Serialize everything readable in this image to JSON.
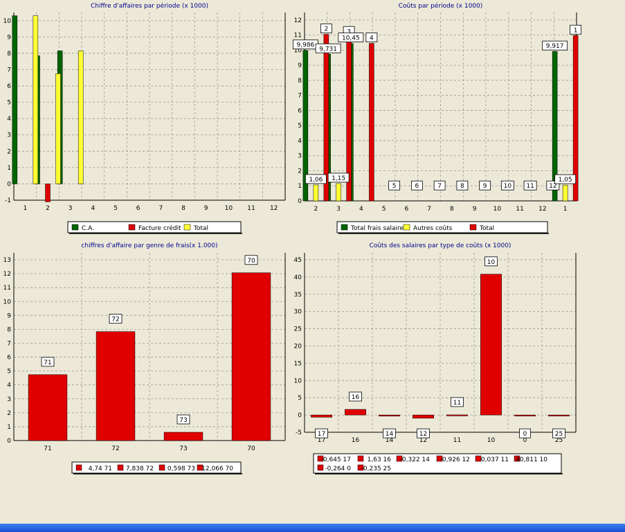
{
  "chart_data": [
    {
      "type": "bar",
      "title": "Chiffre d'affaires par période (x 1000)",
      "categories": [
        "1",
        "2",
        "3",
        "4",
        "5",
        "6",
        "7",
        "8",
        "9",
        "10",
        "11",
        "12"
      ],
      "ylim": [
        -1,
        10.5
      ],
      "yticks": [
        -1,
        0,
        1,
        2,
        3,
        4,
        5,
        6,
        7,
        8,
        9,
        10
      ],
      "grid": true,
      "legend_position": "bottom",
      "series": [
        {
          "name": "C.A.",
          "color": "#006400",
          "values": [
            10.3,
            7.85,
            8.15,
            0,
            0,
            0,
            0,
            0,
            0,
            0,
            0,
            0
          ]
        },
        {
          "name": "Facture crédit",
          "color": "#e00000",
          "values": [
            0,
            -1.1,
            0,
            0,
            0,
            0,
            0,
            0,
            0,
            0,
            0,
            0
          ]
        },
        {
          "name": "Total",
          "color": "#ffff33",
          "values": [
            10.3,
            6.75,
            8.15,
            0,
            0,
            0,
            0,
            0,
            0,
            0,
            0,
            0
          ]
        }
      ]
    },
    {
      "type": "bar",
      "title": "Coûts par période (x 1000)",
      "categories": [
        "2",
        "3",
        "4",
        "5",
        "6",
        "7",
        "8",
        "9",
        "10",
        "11",
        "12",
        "1"
      ],
      "ylim": [
        0,
        12.5
      ],
      "yticks": [
        0,
        1,
        2,
        3,
        4,
        5,
        6,
        7,
        8,
        9,
        10,
        11,
        12
      ],
      "grid": true,
      "legend_position": "bottom",
      "series": [
        {
          "name": "Total frais salaire",
          "color": "#006400",
          "values": [
            9.986,
            9.731,
            10.45,
            0,
            0,
            0,
            0,
            0,
            0,
            0,
            0,
            9.917
          ]
        },
        {
          "name": "Autres coûts",
          "color": "#ffff33",
          "values": [
            1.06,
            1.15,
            0,
            0,
            0,
            0,
            0,
            0,
            0,
            0,
            0,
            1.05
          ]
        },
        {
          "name": "Total",
          "color": "#e00000",
          "values": [
            11.05,
            10.88,
            10.45,
            0,
            0,
            0,
            0,
            0,
            0,
            0,
            0,
            10.97
          ]
        }
      ],
      "bar_labels": [
        {
          "cat": 0,
          "series": 0,
          "text": "9,986"
        },
        {
          "cat": 0,
          "series": 1,
          "text": "1,06"
        },
        {
          "cat": 0,
          "series": 2,
          "text": "2"
        },
        {
          "cat": 1,
          "series": 0,
          "text": "9,731"
        },
        {
          "cat": 1,
          "series": 1,
          "text": "1,15"
        },
        {
          "cat": 1,
          "series": 2,
          "text": "3"
        },
        {
          "cat": 2,
          "series": 0,
          "text": "10,45"
        },
        {
          "cat": 2,
          "series": 2,
          "text": "4"
        },
        {
          "cat": 3,
          "series": 2,
          "text": "5"
        },
        {
          "cat": 4,
          "series": 2,
          "text": "6"
        },
        {
          "cat": 5,
          "series": 2,
          "text": "7"
        },
        {
          "cat": 6,
          "series": 2,
          "text": "8"
        },
        {
          "cat": 7,
          "series": 2,
          "text": "9"
        },
        {
          "cat": 8,
          "series": 2,
          "text": "10"
        },
        {
          "cat": 9,
          "series": 2,
          "text": "11"
        },
        {
          "cat": 10,
          "series": 2,
          "text": "12"
        },
        {
          "cat": 11,
          "series": 0,
          "text": "9,917"
        },
        {
          "cat": 11,
          "series": 1,
          "text": "1,05"
        },
        {
          "cat": 11,
          "series": 2,
          "text": "1"
        }
      ]
    },
    {
      "type": "bar",
      "title": "chiffres d'affaire par genre de frais(x 1.000)",
      "categories": [
        "71",
        "72",
        "73",
        "70"
      ],
      "values": [
        4.74,
        7.838,
        0.598,
        12.066
      ],
      "color": "#e00000",
      "ylim": [
        0,
        13.5
      ],
      "yticks": [
        0,
        1,
        2,
        3,
        4,
        5,
        6,
        7,
        8,
        9,
        10,
        11,
        12,
        13
      ],
      "grid": true,
      "legend_position": "bottom",
      "bar_labels": [
        "71",
        "72",
        "73",
        "70"
      ],
      "legend": [
        "4,74 71",
        "7,838 72",
        "0,598 73",
        "12,066 70"
      ]
    },
    {
      "type": "bar",
      "title": "Coûts des salaires par type de coûts (x 1000)",
      "categories": [
        "17",
        "16",
        "14",
        "12",
        "11",
        "10",
        "0",
        "25"
      ],
      "values": [
        -0.645,
        1.63,
        -0.322,
        -0.926,
        0.037,
        40.811,
        -0.264,
        -0.235
      ],
      "color": "#e00000",
      "ylim": [
        -5,
        47
      ],
      "yticks": [
        -5,
        0,
        5,
        10,
        15,
        20,
        25,
        30,
        35,
        40,
        45
      ],
      "grid": true,
      "legend_position": "bottom",
      "bar_labels": [
        "17",
        "16",
        "14",
        "12",
        "11",
        "10",
        "0",
        "25"
      ],
      "legend": [
        "-0,645 17",
        "1,63 16",
        "-0,322 14",
        "-0,926 12",
        "0,037 11",
        "40,811 10",
        "-0,264 0",
        "-0,235 25"
      ]
    }
  ]
}
